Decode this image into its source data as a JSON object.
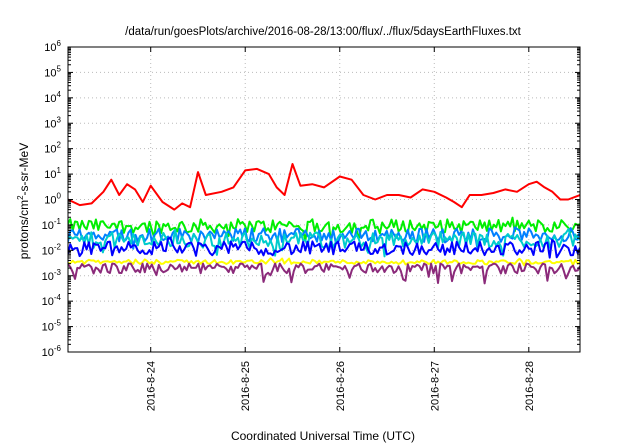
{
  "chart_data": {
    "type": "line",
    "title": "/data/run/goesPlots/archive/2016-08-28/13:00/flux/../flux/5daysEarthFluxes.txt",
    "xlabel": "Coordinated Universal Time (UTC)",
    "ylabel": "protons/cm2-s-sr-MeV",
    "ylabel_parts": {
      "base": "protons/cm",
      "sup": "2",
      "rest": "-s-sr-MeV"
    },
    "yscale": "log",
    "ylim": [
      1e-06,
      1000000.0
    ],
    "y_tick_exponents": [
      -6,
      -5,
      -4,
      -3,
      -2,
      -1,
      0,
      1,
      2,
      3,
      4,
      5,
      6
    ],
    "y_tick_base": "10",
    "xlim": [
      "2016-08-23 03:00",
      "2016-08-28 13:00"
    ],
    "x_ticks": [
      "2016-8-24",
      "2016-8-25",
      "2016-8-26",
      "2016-8-27",
      "2016-8-28"
    ],
    "grid": true,
    "legend": "none",
    "series": [
      {
        "color": "#ff0000",
        "x": [
          "2016-08-23 03:00",
          "2016-08-23 06:00",
          "2016-08-23 09:00",
          "2016-08-23 12:00",
          "2016-08-23 14:00",
          "2016-08-23 16:00",
          "2016-08-23 18:00",
          "2016-08-23 20:00",
          "2016-08-23 22:00",
          "2016-08-24 00:00",
          "2016-08-24 03:00",
          "2016-08-24 06:00",
          "2016-08-24 08:00",
          "2016-08-24 10:00",
          "2016-08-24 12:00",
          "2016-08-24 14:00",
          "2016-08-24 18:00",
          "2016-08-24 21:00",
          "2016-08-25 00:00",
          "2016-08-25 03:00",
          "2016-08-25 06:00",
          "2016-08-25 08:00",
          "2016-08-25 10:00",
          "2016-08-25 12:00",
          "2016-08-25 14:00",
          "2016-08-25 17:00",
          "2016-08-25 20:00",
          "2016-08-26 00:00",
          "2016-08-26 03:00",
          "2016-08-26 06:00",
          "2016-08-26 09:00",
          "2016-08-26 12:00",
          "2016-08-26 15:00",
          "2016-08-26 18:00",
          "2016-08-26 21:00",
          "2016-08-27 00:00",
          "2016-08-27 03:00",
          "2016-08-27 05:00",
          "2016-08-27 07:00",
          "2016-08-27 09:00",
          "2016-08-27 12:00",
          "2016-08-27 15:00",
          "2016-08-27 18:00",
          "2016-08-27 21:00",
          "2016-08-28 00:00",
          "2016-08-28 02:00",
          "2016-08-28 04:00",
          "2016-08-28 06:00",
          "2016-08-28 08:00",
          "2016-08-28 10:00",
          "2016-08-28 13:00"
        ],
        "y": [
          1.0,
          0.6,
          0.7,
          2.0,
          6.0,
          1.5,
          4.0,
          2.5,
          0.8,
          3.5,
          0.8,
          0.4,
          0.7,
          0.5,
          12.0,
          1.5,
          2.0,
          3.0,
          14.0,
          16.0,
          10.0,
          3.0,
          1.5,
          25.0,
          3.5,
          4.0,
          3.0,
          8.0,
          6.0,
          1.5,
          1.0,
          1.5,
          1.5,
          1.2,
          2.5,
          2.0,
          1.2,
          0.8,
          0.5,
          1.5,
          1.5,
          1.8,
          2.5,
          2.0,
          4.0,
          5.0,
          3.0,
          2.0,
          1.0,
          1.0,
          1.5
        ]
      },
      {
        "color": "#00ee00",
        "baseline": 0.09,
        "min": 0.02,
        "max": 0.2
      },
      {
        "color": "#00cccc",
        "baseline": 0.025,
        "min": 0.005,
        "max": 0.07
      },
      {
        "color": "#0000ff",
        "baseline": 0.012,
        "min": 0.004,
        "max": 0.04
      },
      {
        "color": "#0080ff",
        "baseline": 0.04,
        "min": 0.01,
        "max": 0.1
      },
      {
        "color": "#ffff00",
        "baseline": 0.0035,
        "min": 0.0025,
        "max": 0.005
      },
      {
        "color": "#8b2a7a",
        "baseline": 0.002,
        "min": 0.0005,
        "max": 0.003
      }
    ]
  }
}
